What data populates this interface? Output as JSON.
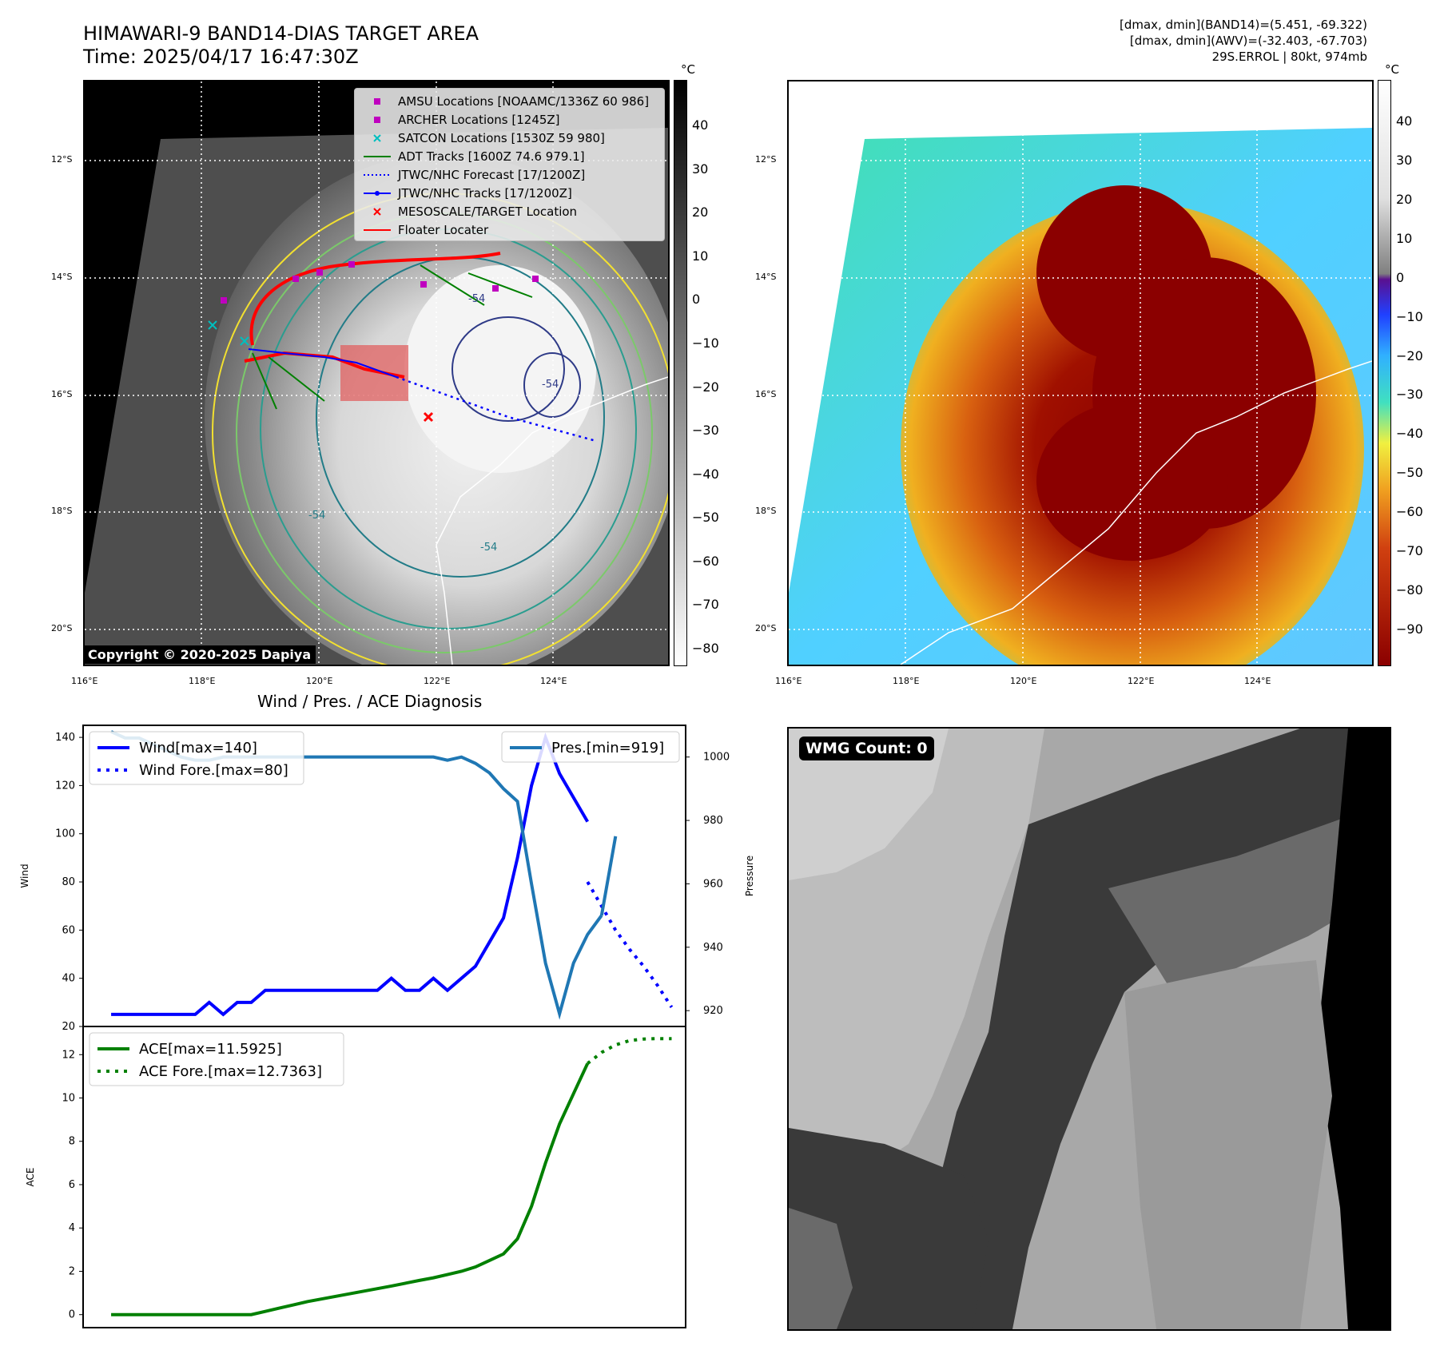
{
  "header": {
    "title_line1": "HIMAWARI-9 BAND14-DIAS TARGET AREA",
    "title_line2": "Time: 2025/04/17 16:47:30Z",
    "info_line1": "[dmax, dmin](BAND14)=(5.451, -69.322)",
    "info_line2": "[dmax, dmin](AWV)=(-32.403, -67.703)",
    "info_line3": "29S.ERROL | 80kt, 974mb"
  },
  "map": {
    "lat_labels": [
      "12°S",
      "14°S",
      "16°S",
      "18°S",
      "20°S"
    ],
    "lon_labels": [
      "116°E",
      "118°E",
      "120°E",
      "122°E",
      "124°E"
    ],
    "contour_labels": [
      "-54",
      "-54",
      "-54",
      "-54"
    ],
    "copyright": "Copyright © 2020-2025 Dapiya",
    "legend": [
      {
        "label": "AMSU Locations [NOAAMC/1336Z 60 986]",
        "color": "#bf00bf",
        "symbol": "square"
      },
      {
        "label": "ARCHER Locations [1245Z]",
        "color": "#bf00bf",
        "symbol": "square"
      },
      {
        "label": "SATCON Locations [1530Z 59 980]",
        "color": "#00bfbf",
        "symbol": "x"
      },
      {
        "label": "ADT Tracks [1600Z 74.6 979.1]",
        "color": "#008000",
        "symbol": "line"
      },
      {
        "label": "JTWC/NHC Forecast [17/1200Z]",
        "color": "#0000ff",
        "symbol": "dotted"
      },
      {
        "label": "JTWC/NHC Tracks [17/1200Z]",
        "color": "#0000ff",
        "symbol": "line-dot"
      },
      {
        "label": "MESOSCALE/TARGET Location",
        "color": "#ff0000",
        "symbol": "x"
      },
      {
        "label": "Floater Locater",
        "color": "#ff0000",
        "symbol": "line"
      }
    ]
  },
  "colorbar_gray": {
    "unit": "°C",
    "ticks": [
      "40",
      "30",
      "20",
      "10",
      "0",
      "−10",
      "−20",
      "−30",
      "−40",
      "−50",
      "−60",
      "−70",
      "−80"
    ]
  },
  "colorbar_color": {
    "unit": "°C",
    "ticks": [
      "40",
      "30",
      "20",
      "10",
      "0",
      "−10",
      "−20",
      "−30",
      "−40",
      "−50",
      "−60",
      "−70",
      "−80",
      "−90"
    ]
  },
  "diagnosis": {
    "title": "Wind / Pres. / ACE Diagnosis",
    "wmg_label": "WMG Count: 0"
  },
  "chart_data": [
    {
      "type": "line",
      "title": "Wind / Pres. / ACE Diagnosis",
      "ylabel": "Wind",
      "y2label": "Pressure",
      "ylim": [
        20,
        145
      ],
      "y2lim": [
        915,
        1010
      ],
      "yticks": [
        20,
        40,
        60,
        80,
        100,
        120,
        140
      ],
      "y2ticks": [
        920,
        940,
        960,
        980,
        1000
      ],
      "x": [
        0,
        1,
        2,
        3,
        4,
        5,
        6,
        7,
        8,
        9,
        10,
        11,
        12,
        13,
        14,
        15,
        16,
        17,
        18,
        19,
        20,
        21,
        22,
        23,
        24,
        25,
        26,
        27,
        28,
        29,
        30,
        31,
        32,
        33,
        34,
        35,
        36,
        37,
        38,
        39,
        40
      ],
      "series": [
        {
          "name": "Wind[max=140]",
          "axis": "left",
          "color": "#0000ff",
          "style": "solid",
          "x": [
            0,
            1,
            2,
            3,
            4,
            5,
            6,
            7,
            8,
            9,
            10,
            11,
            12,
            13,
            14,
            15,
            16,
            17,
            18,
            19,
            20,
            21,
            22,
            23,
            24,
            25,
            26,
            27,
            28,
            29,
            30,
            31,
            32,
            33,
            34
          ],
          "values": [
            25,
            25,
            25,
            25,
            25,
            25,
            25,
            30,
            25,
            30,
            30,
            35,
            35,
            35,
            35,
            35,
            35,
            35,
            35,
            35,
            40,
            35,
            35,
            40,
            35,
            40,
            45,
            55,
            65,
            90,
            120,
            140,
            125,
            115,
            105
          ]
        },
        {
          "name": "Wind Fore.[max=80]",
          "axis": "left",
          "color": "#0000ff",
          "style": "dotted",
          "x": [
            34,
            35,
            36,
            37,
            38,
            39,
            40
          ],
          "values": [
            80,
            70,
            60,
            52,
            45,
            37,
            28
          ]
        },
        {
          "name": "Pres.[min=919]",
          "axis": "right",
          "color": "#1f77b4",
          "style": "solid",
          "x": [
            0,
            1,
            2,
            3,
            4,
            5,
            6,
            7,
            8,
            9,
            10,
            11,
            12,
            13,
            14,
            15,
            16,
            17,
            18,
            19,
            20,
            21,
            22,
            23,
            24,
            25,
            26,
            27,
            28,
            29,
            30,
            31,
            32,
            33,
            34,
            35
          ],
          "values": [
            1008,
            1006,
            1006,
            1004,
            1002,
            1000,
            999,
            999,
            1000,
            1000,
            1000,
            1000,
            1000,
            1000,
            1000,
            1000,
            1000,
            1000,
            1000,
            1000,
            1000,
            1000,
            1000,
            1000,
            999,
            1000,
            998,
            995,
            990,
            986,
            960,
            935,
            919,
            935,
            944,
            950
          ]
        },
        {
          "name": "Pres. tail",
          "axis": "right",
          "color": "#1f77b4",
          "style": "solid",
          "x": [
            35,
            36
          ],
          "values": [
            950,
            975
          ]
        }
      ]
    },
    {
      "type": "line",
      "ylabel": "ACE",
      "ylim": [
        -0.6,
        13.3
      ],
      "yticks": [
        0,
        2,
        4,
        6,
        8,
        10,
        12
      ],
      "series": [
        {
          "name": "ACE[max=11.5925]",
          "color": "#008000",
          "style": "solid",
          "x": [
            0,
            1,
            2,
            3,
            4,
            5,
            6,
            7,
            8,
            9,
            10,
            11,
            12,
            13,
            14,
            15,
            16,
            17,
            18,
            19,
            20,
            21,
            22,
            23,
            24,
            25,
            26,
            27,
            28,
            29,
            30,
            31,
            32,
            33,
            34
          ],
          "values": [
            0,
            0,
            0,
            0,
            0,
            0,
            0,
            0,
            0,
            0,
            0,
            0.15,
            0.3,
            0.45,
            0.6,
            0.72,
            0.84,
            0.96,
            1.08,
            1.2,
            1.32,
            1.45,
            1.58,
            1.7,
            1.85,
            2.0,
            2.2,
            2.5,
            2.8,
            3.5,
            5.0,
            7.0,
            8.8,
            10.2,
            11.5925
          ]
        },
        {
          "name": "ACE Fore.[max=12.7363]",
          "color": "#008000",
          "style": "dotted",
          "x": [
            34,
            35,
            36,
            37,
            38,
            39,
            40
          ],
          "values": [
            11.5925,
            12.1,
            12.45,
            12.65,
            12.72,
            12.74,
            12.7363
          ]
        }
      ]
    }
  ]
}
